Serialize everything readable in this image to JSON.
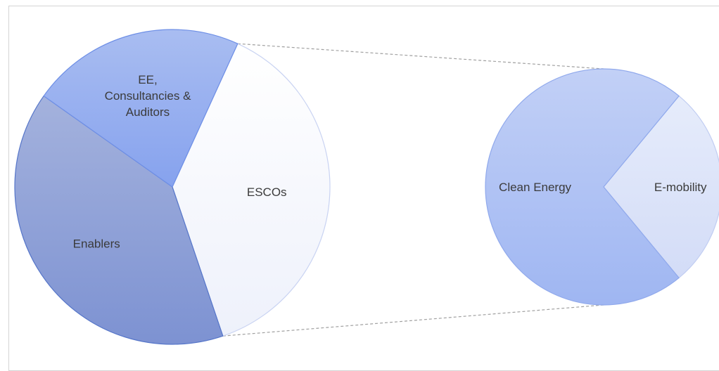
{
  "chart_data": {
    "type": "pie",
    "title": "",
    "subtitle": "",
    "main_pie": {
      "slices": [
        {
          "label": "ESCOs",
          "value": 38.0,
          "color": "#f3f5fd"
        },
        {
          "label": "Enablers",
          "value": 40.0,
          "color": "#8c9fd6"
        },
        {
          "label": "EE, Consultancies & Auditors",
          "value": 22.0,
          "color": "#97b0ef"
        }
      ],
      "exploded_slice": "ESCOs"
    },
    "detail_pie": {
      "source_slice": "ESCOs",
      "slices": [
        {
          "label": "E-mobility",
          "value": 28.0,
          "color": "#dbe3f9"
        },
        {
          "label": "Clean Energy",
          "value": 72.0,
          "color": "#aabff3"
        }
      ]
    },
    "connector_color": "#a0a0a0",
    "legend": "none"
  }
}
